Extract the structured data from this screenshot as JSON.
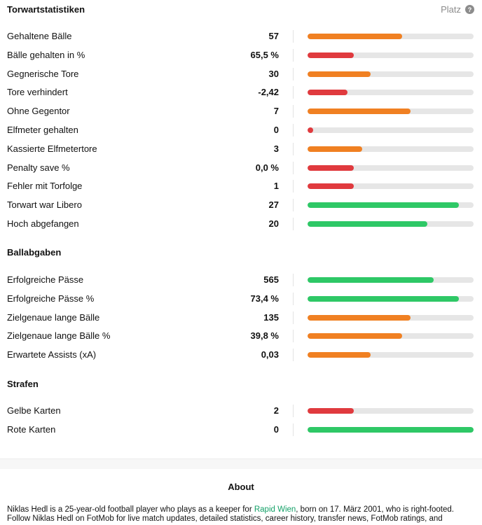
{
  "goalkeeping": {
    "title": "Torwartstatistiken",
    "rank_label": "Platz",
    "help_icon": "?",
    "rows": [
      {
        "label": "Gehaltene Bälle",
        "value": "57",
        "pct": 0.57,
        "color": "#f08022"
      },
      {
        "label": "Bälle gehalten in %",
        "value": "65,5 %",
        "pct": 0.28,
        "color": "#e03a3e"
      },
      {
        "label": "Gegnerische Tore",
        "value": "30",
        "pct": 0.38,
        "color": "#f08022"
      },
      {
        "label": "Tore verhindert",
        "value": "-2,42",
        "pct": 0.24,
        "color": "#e03a3e"
      },
      {
        "label": "Ohne Gegentor",
        "value": "7",
        "pct": 0.62,
        "color": "#f08022"
      },
      {
        "label": "Elfmeter gehalten",
        "value": "0",
        "pct": 0.035,
        "color": "#e03a3e"
      },
      {
        "label": "Kassierte Elfmetertore",
        "value": "3",
        "pct": 0.33,
        "color": "#f08022"
      },
      {
        "label": "Penalty save %",
        "value": "0,0 %",
        "pct": 0.28,
        "color": "#e03a3e"
      },
      {
        "label": "Fehler mit Torfolge",
        "value": "1",
        "pct": 0.28,
        "color": "#e03a3e"
      },
      {
        "label": "Torwart war Libero",
        "value": "27",
        "pct": 0.91,
        "color": "#2ec866"
      },
      {
        "label": "Hoch abgefangen",
        "value": "20",
        "pct": 0.72,
        "color": "#2ec866"
      }
    ]
  },
  "passing": {
    "title": "Ballabgaben",
    "rows": [
      {
        "label": "Erfolgreiche Pässe",
        "value": "565",
        "pct": 0.76,
        "color": "#2ec866"
      },
      {
        "label": "Erfolgreiche Pässe %",
        "value": "73,4 %",
        "pct": 0.91,
        "color": "#2ec866"
      },
      {
        "label": "Zielgenaue lange Bälle",
        "value": "135",
        "pct": 0.62,
        "color": "#f08022"
      },
      {
        "label": "Zielgenaue lange Bälle %",
        "value": "39,8 %",
        "pct": 0.57,
        "color": "#f08022"
      },
      {
        "label": "Erwartete Assists (xA)",
        "value": "0,03",
        "pct": 0.38,
        "color": "#f08022"
      }
    ]
  },
  "discipline": {
    "title": "Strafen",
    "rows": [
      {
        "label": "Gelbe Karten",
        "value": "2",
        "pct": 0.28,
        "color": "#e03a3e"
      },
      {
        "label": "Rote Karten",
        "value": "0",
        "pct": 1.0,
        "color": "#2ec866"
      }
    ]
  },
  "about": {
    "title": "About",
    "text_before": "Niklas Hedl is a 25-year-old football player who plays as a keeper for ",
    "club": "Rapid Wien",
    "text_after": ", born on 17. März 2001, who is right-footed. Follow Niklas Hedl on FotMob for live match updates, detailed statistics, career history, transfer news, FotMob ratings, and"
  }
}
